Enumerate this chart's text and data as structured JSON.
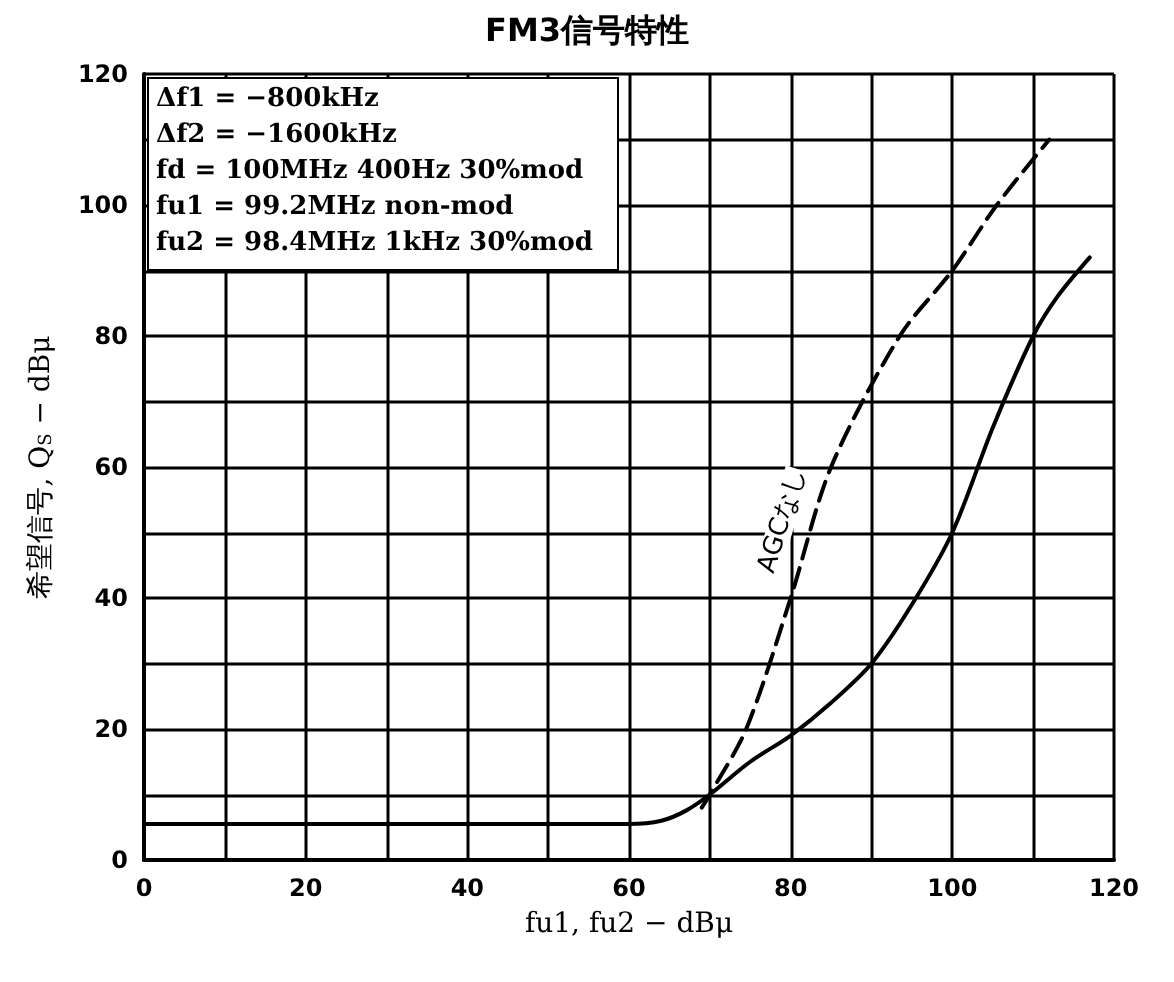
{
  "chart_data": {
    "type": "line",
    "title": "FM3信号特性",
    "xlabel": "fu1, fu2 − dBμ",
    "ylabel": "希望信号, Q$_{S}$ − dBμ",
    "annotations": [
      "Δf1 = −800kHz",
      "Δf2 = −1600kHz",
      "fd = 100MHz 400Hz 30%mod",
      "fu1 = 99.2MHz non-mod",
      "fu2 = 98.4MHz 1kHz 30%mod"
    ],
    "xlim": [
      0,
      120
    ],
    "xticks": [
      0,
      {
        "value": 10,
        "label": null
      },
      20,
      {
        "value": 30,
        "label": null
      },
      40,
      {
        "value": 50,
        "label": null
      },
      60,
      {
        "value": 70,
        "label": null
      },
      80,
      {
        "value": 90,
        "label": null
      },
      100,
      {
        "value": 110,
        "label": null
      },
      120
    ],
    "ylim": [
      0,
      120
    ],
    "yticks": [
      0,
      {
        "value": 10,
        "label": null
      },
      20,
      {
        "value": 30,
        "label": null
      },
      40,
      {
        "value": 50,
        "label": null
      },
      60,
      {
        "value": 70,
        "label": null
      },
      80,
      {
        "value": 90,
        "label": null
      },
      100,
      {
        "value": 110,
        "label": null
      },
      120
    ],
    "grid": true,
    "marker": "none",
    "series": [
      {
        "color": "#000000",
        "line_style": "solid",
        "x": [
          0,
          40,
          60,
          64,
          67,
          70,
          75,
          80,
          85,
          90,
          95,
          100,
          105,
          110,
          113,
          117
        ],
        "values": [
          5.5,
          5.5,
          5.5,
          6,
          7.5,
          10,
          15,
          19,
          24,
          30,
          39,
          50,
          66,
          80,
          86,
          92
        ]
      },
      {
        "name": "AGCなし",
        "color": "#000000",
        "line_style": "dashed",
        "x": [
          69,
          70,
          74.5,
          80,
          85,
          93.5,
          100,
          105.5,
          112
        ],
        "values": [
          8,
          10,
          20,
          40,
          60,
          80,
          90,
          100,
          110
        ]
      }
    ]
  }
}
